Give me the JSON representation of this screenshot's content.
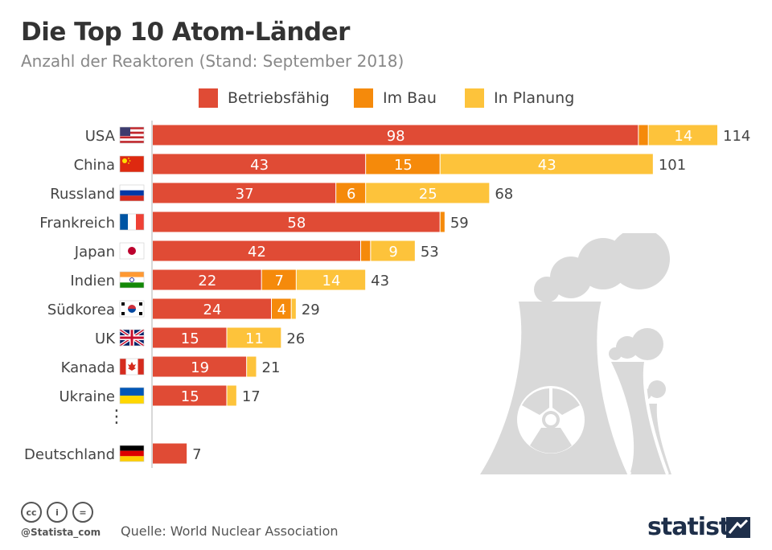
{
  "header": {
    "title": "Die Top 10 Atom-Länder",
    "subtitle": "Anzahl der Reaktoren (Stand: September 2018)"
  },
  "legend": {
    "items": [
      {
        "label": "Betriebsfähig",
        "color": "#e04b35"
      },
      {
        "label": "Im Bau",
        "color": "#f58a0b"
      },
      {
        "label": "In Planung",
        "color": "#fdc33b"
      }
    ]
  },
  "chart_data": {
    "type": "bar",
    "orientation": "horizontal",
    "stacked": true,
    "title": "Die Top 10 Atom-Länder",
    "subtitle": "Anzahl der Reaktoren (Stand: September 2018)",
    "categories": [
      "USA",
      "China",
      "Russland",
      "Frankreich",
      "Japan",
      "Indien",
      "Südkorea",
      "UK",
      "Kanada",
      "Ukraine",
      "Deutschland"
    ],
    "series": [
      {
        "name": "Betriebsfähig",
        "color": "#e04b35",
        "values": [
          98,
          43,
          37,
          58,
          42,
          22,
          24,
          15,
          19,
          15,
          7
        ]
      },
      {
        "name": "Im Bau",
        "color": "#f58a0b",
        "values": [
          2,
          15,
          6,
          1,
          2,
          7,
          4,
          0,
          0,
          0,
          0
        ]
      },
      {
        "name": "In Planung",
        "color": "#fdc33b",
        "values": [
          14,
          43,
          25,
          0,
          9,
          14,
          1,
          11,
          2,
          2,
          0
        ]
      }
    ],
    "totals": [
      114,
      101,
      68,
      59,
      53,
      43,
      29,
      26,
      21,
      17,
      7
    ],
    "segment_labels": [
      [
        "98",
        "",
        "14"
      ],
      [
        "43",
        "15",
        "43"
      ],
      [
        "37",
        "6",
        "25"
      ],
      [
        "58",
        "",
        ""
      ],
      [
        "42",
        "",
        "9"
      ],
      [
        "22",
        "7",
        "14"
      ],
      [
        "24",
        "4",
        ""
      ],
      [
        "15",
        "",
        "11"
      ],
      [
        "19",
        "",
        ""
      ],
      [
        "15",
        "",
        ""
      ],
      [
        "",
        "",
        ""
      ]
    ],
    "flags": [
      "flag-usa-icon",
      "flag-china-icon",
      "flag-russia-icon",
      "flag-france-icon",
      "flag-japan-icon",
      "flag-india-icon",
      "flag-southkorea-icon",
      "flag-uk-icon",
      "flag-canada-icon",
      "flag-ukraine-icon",
      "flag-germany-icon"
    ],
    "xlim": [
      0,
      114
    ],
    "grid": false,
    "legend": "top"
  },
  "gap_marker": "⋮",
  "footer": {
    "handle": "@Statista_com",
    "source": "Quelle: World Nuclear Association",
    "brand": "statista",
    "cc_icons": [
      "cc",
      "i",
      "="
    ]
  }
}
